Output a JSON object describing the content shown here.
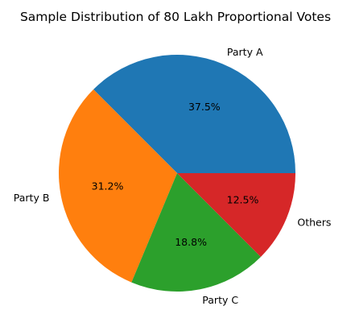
{
  "chart_data": {
    "type": "pie",
    "title": "Sample Distribution of 80 Lakh Proportional Votes",
    "labels": [
      "Party A",
      "Party B",
      "Party C",
      "Others"
    ],
    "values": [
      37.5,
      31.2,
      18.8,
      12.5
    ],
    "percent_labels": [
      "37.5%",
      "31.2%",
      "18.8%",
      "12.5%"
    ],
    "colors": [
      "#1f77b4",
      "#ff7f0e",
      "#2ca02c",
      "#d62728"
    ],
    "start_angle": "0 degrees (3 o'clock), counter-clockwise",
    "legend": "none"
  }
}
